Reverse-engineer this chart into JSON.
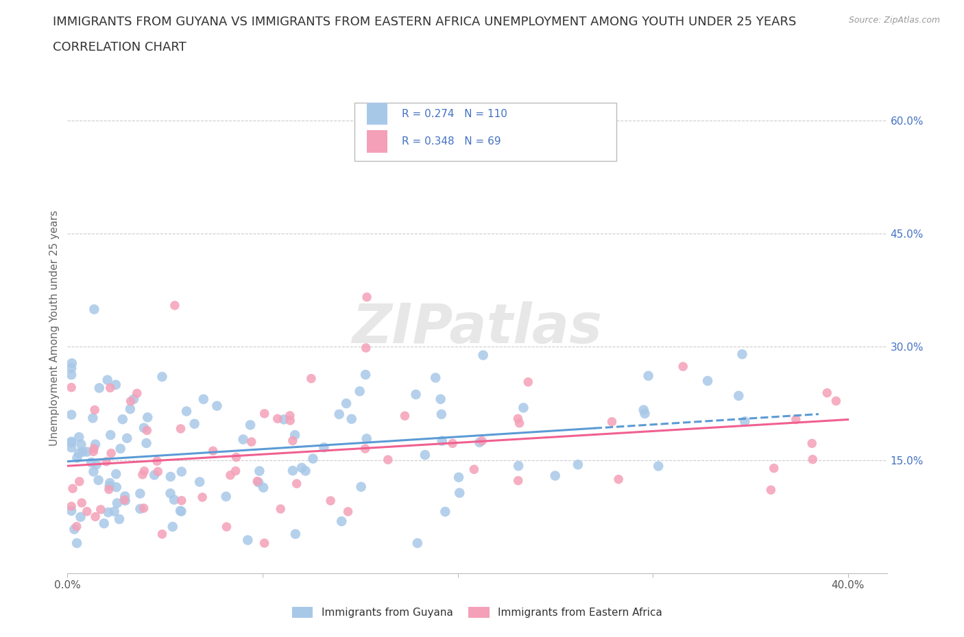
{
  "title_line1": "IMMIGRANTS FROM GUYANA VS IMMIGRANTS FROM EASTERN AFRICA UNEMPLOYMENT AMONG YOUTH UNDER 25 YEARS",
  "title_line2": "CORRELATION CHART",
  "source_text": "Source: ZipAtlas.com",
  "ylabel": "Unemployment Among Youth under 25 years",
  "xlim": [
    0.0,
    0.42
  ],
  "ylim": [
    0.0,
    0.65
  ],
  "xtick_positions": [
    0.0,
    0.1,
    0.2,
    0.3,
    0.4
  ],
  "xticklabels": [
    "0.0%",
    "",
    "",
    "",
    "40.0%"
  ],
  "ytick_positions": [
    0.15,
    0.3,
    0.45,
    0.6
  ],
  "ytick_labels": [
    "15.0%",
    "30.0%",
    "45.0%",
    "60.0%"
  ],
  "guyana_color": "#a8c8e8",
  "eastern_africa_color": "#f4a0b8",
  "guyana_line_color": "#5b9bd5",
  "eastern_africa_line_color": "#f06090",
  "R_guyana": 0.274,
  "N_guyana": 110,
  "R_eastern": 0.348,
  "N_eastern": 69,
  "watermark": "ZIPatlas",
  "guyana_label": "Immigrants from Guyana",
  "eastern_label": "Immigrants from Eastern Africa",
  "title_fontsize": 13,
  "axis_label_fontsize": 11,
  "tick_fontsize": 11,
  "background_color": "#ffffff",
  "grid_color": "#cccccc",
  "title_color": "#333333",
  "blue_text_color": "#4472c4",
  "legend_text_color": "#333333"
}
